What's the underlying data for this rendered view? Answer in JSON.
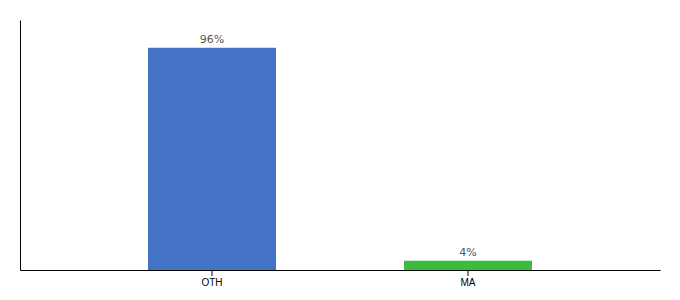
{
  "chart_data": {
    "type": "bar",
    "categories": [
      "OTH",
      "MA"
    ],
    "values": [
      96,
      4
    ],
    "value_labels": [
      "96%",
      "4%"
    ],
    "colors": [
      "#4472c4",
      "#3dbb3d"
    ],
    "ylim": [
      0,
      108
    ],
    "data_labels": true,
    "tick_labels": "x"
  }
}
